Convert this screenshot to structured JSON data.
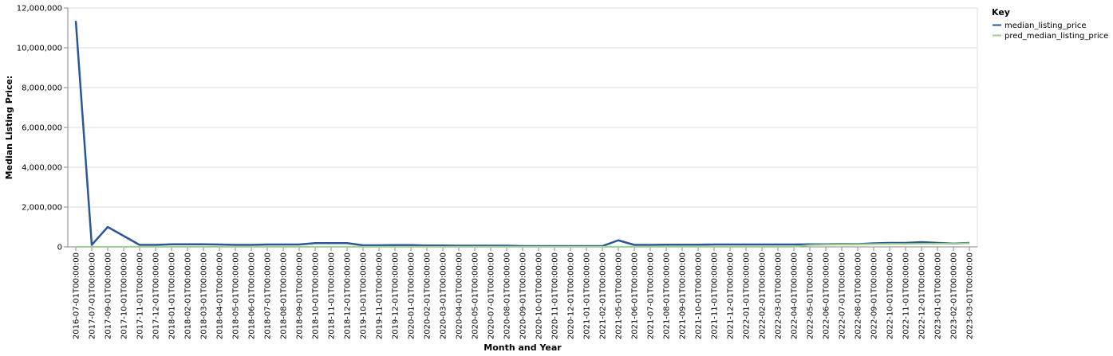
{
  "chart_data": {
    "type": "line",
    "xlabel": "Month and Year",
    "ylabel": "Median Listing Price:",
    "ylim": [
      0,
      12000000
    ],
    "yticks": [
      0,
      2000000,
      4000000,
      6000000,
      8000000,
      10000000,
      12000000
    ],
    "ytick_labels": [
      "0",
      "2,000,000",
      "4,000,000",
      "6,000,000",
      "8,000,000",
      "10,000,000",
      "12,000,000"
    ],
    "grid": true,
    "legend_position": "right",
    "legend_title": "Key",
    "x": [
      "2016-07-01T00:00:00",
      "2017-07-01T00:00:00",
      "2017-09-01T00:00:00",
      "2017-10-01T00:00:00",
      "2017-11-01T00:00:00",
      "2017-12-01T00:00:00",
      "2018-01-01T00:00:00",
      "2018-02-01T00:00:00",
      "2018-03-01T00:00:00",
      "2018-04-01T00:00:00",
      "2018-05-01T00:00:00",
      "2018-06-01T00:00:00",
      "2018-07-01T00:00:00",
      "2018-08-01T00:00:00",
      "2018-09-01T00:00:00",
      "2018-10-01T00:00:00",
      "2018-11-01T00:00:00",
      "2018-12-01T00:00:00",
      "2019-10-01T00:00:00",
      "2019-11-01T00:00:00",
      "2019-12-01T00:00:00",
      "2020-01-01T00:00:00",
      "2020-02-01T00:00:00",
      "2020-03-01T00:00:00",
      "2020-04-01T00:00:00",
      "2020-05-01T00:00:00",
      "2020-07-01T00:00:00",
      "2020-08-01T00:00:00",
      "2020-09-01T00:00:00",
      "2020-10-01T00:00:00",
      "2020-11-01T00:00:00",
      "2020-12-01T00:00:00",
      "2021-01-01T00:00:00",
      "2021-02-01T00:00:00",
      "2021-05-01T00:00:00",
      "2021-06-01T00:00:00",
      "2021-07-01T00:00:00",
      "2021-08-01T00:00:00",
      "2021-09-01T00:00:00",
      "2021-10-01T00:00:00",
      "2021-11-01T00:00:00",
      "2021-12-01T00:00:00",
      "2022-01-01T00:00:00",
      "2022-02-01T00:00:00",
      "2022-03-01T00:00:00",
      "2022-04-01T00:00:00",
      "2022-05-01T00:00:00",
      "2022-06-01T00:00:00",
      "2022-07-01T00:00:00",
      "2022-08-01T00:00:00",
      "2022-09-01T00:00:00",
      "2022-10-01T00:00:00",
      "2022-11-01T00:00:00",
      "2022-12-01T00:00:00",
      "2023-01-01T00:00:00",
      "2023-02-01T00:00:00",
      "2023-03-01T00:00:00"
    ],
    "series": [
      {
        "name": "median_listing_price",
        "color": "#2b5797",
        "values": [
          11350000,
          100000,
          1000000,
          550000,
          100000,
          100000,
          130000,
          130000,
          130000,
          120000,
          100000,
          100000,
          120000,
          120000,
          120000,
          190000,
          190000,
          190000,
          80000,
          80000,
          90000,
          90000,
          70000,
          70000,
          60000,
          60000,
          60000,
          60000,
          40000,
          40000,
          40000,
          40000,
          40000,
          40000,
          330000,
          100000,
          100000,
          110000,
          110000,
          110000,
          120000,
          120000,
          120000,
          120000,
          120000,
          120000,
          130000,
          130000,
          140000,
          140000,
          180000,
          200000,
          200000,
          240000,
          200000,
          170000,
          200000
        ]
      },
      {
        "name": "pred_median_listing_price",
        "color": "#9bd08f",
        "values": [
          5000,
          5000,
          5000,
          5000,
          5000,
          5000,
          5000,
          5000,
          5000,
          5000,
          5000,
          5000,
          5000,
          5000,
          5000,
          5000,
          5000,
          5000,
          5000,
          5000,
          5000,
          5000,
          5000,
          5000,
          5000,
          5000,
          5000,
          5000,
          5000,
          5000,
          5000,
          5000,
          5000,
          5000,
          5000,
          5000,
          5000,
          5000,
          5000,
          5000,
          5000,
          5000,
          5000,
          5000,
          5000,
          5000,
          90000,
          110000,
          120000,
          130000,
          140000,
          150000,
          150000,
          160000,
          160000,
          170000,
          180000
        ]
      }
    ]
  }
}
